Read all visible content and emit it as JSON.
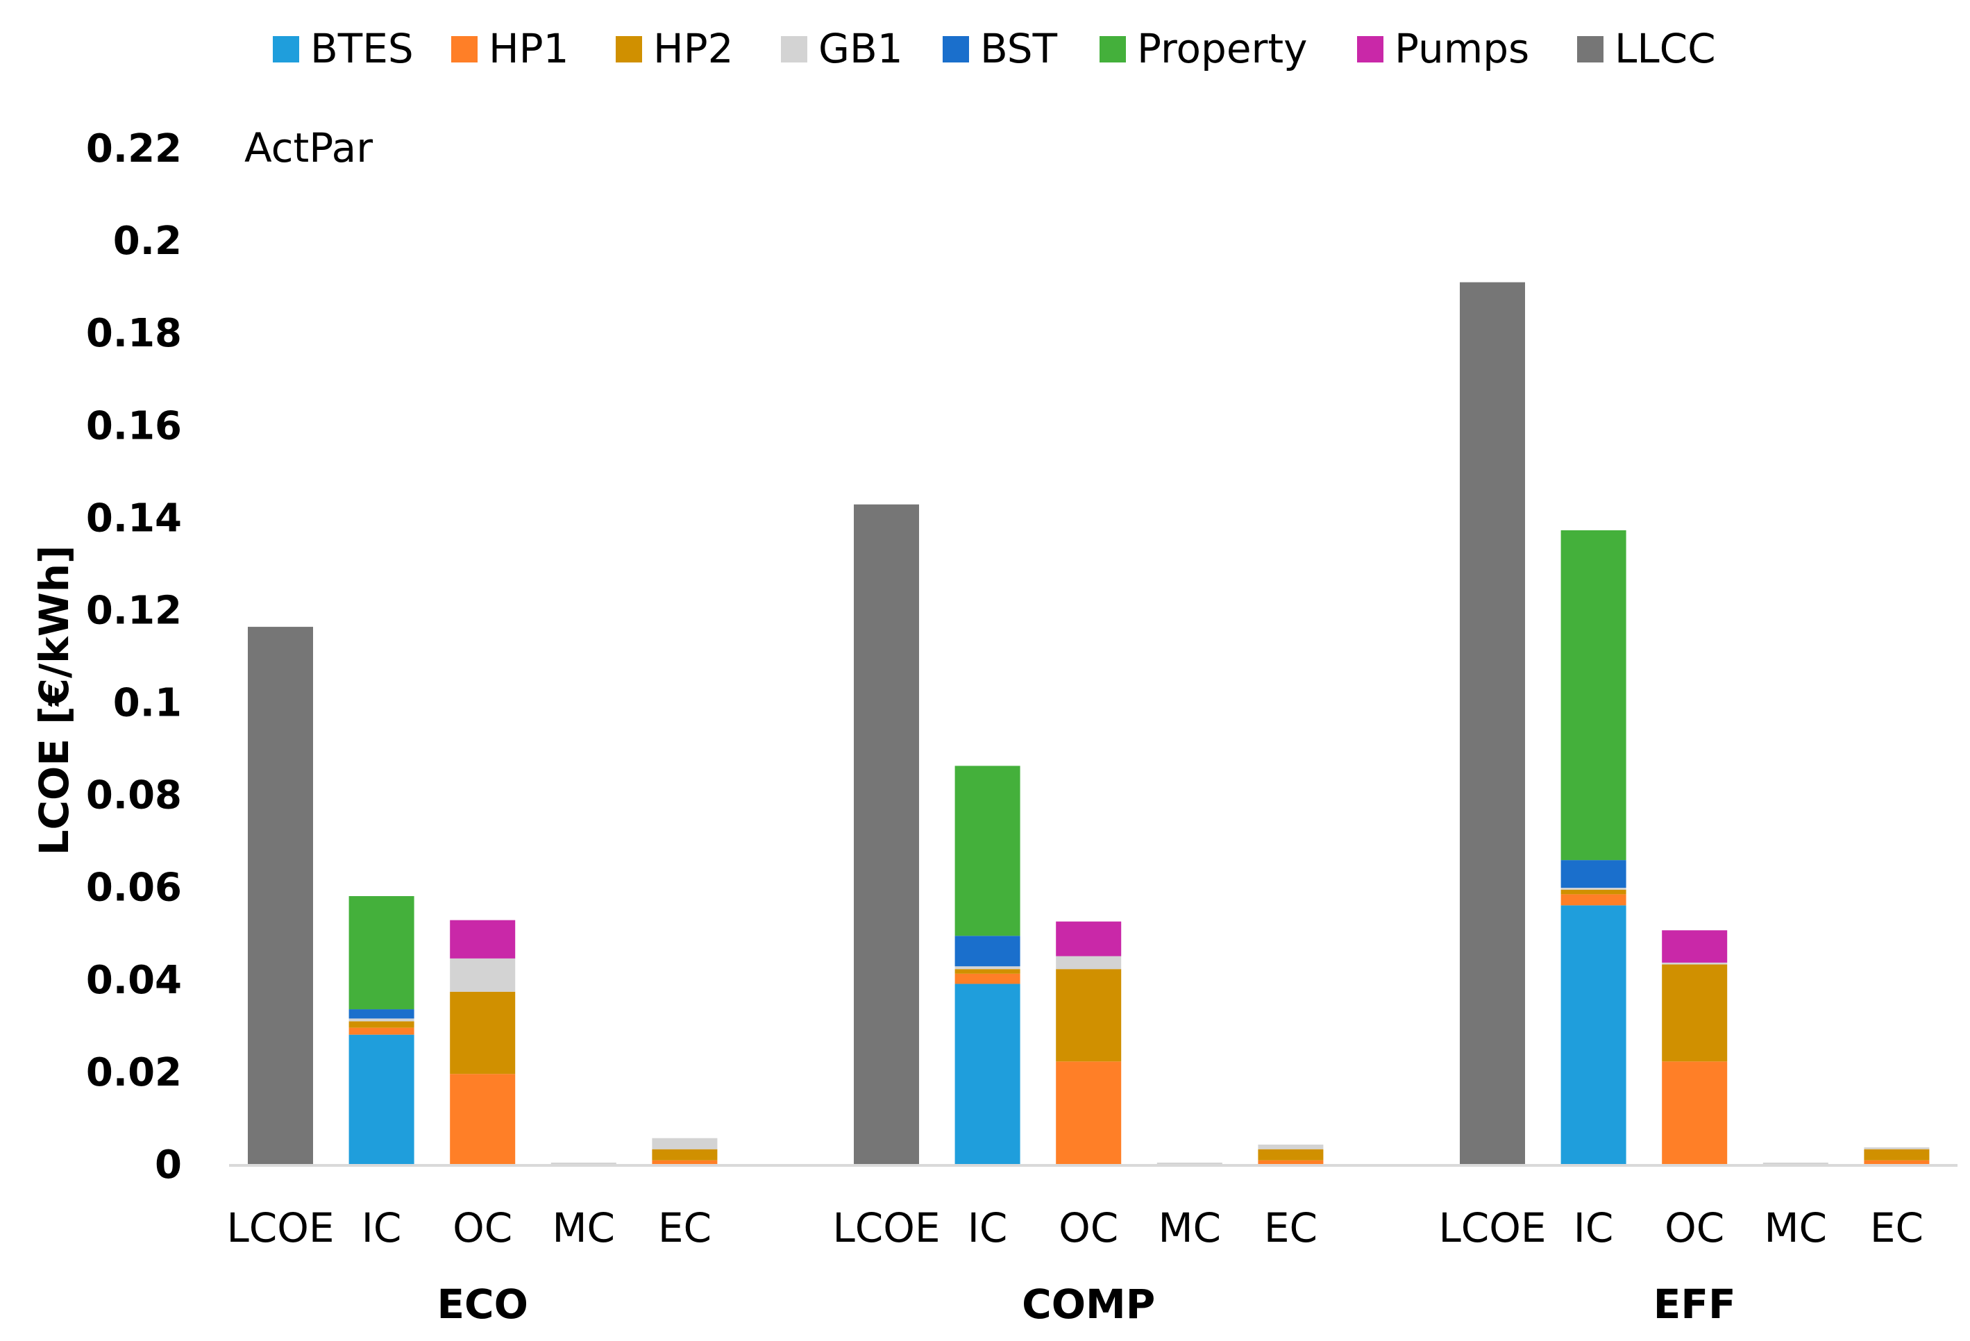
{
  "chart_data": {
    "type": "bar",
    "stacked": true,
    "title": "",
    "annotation": "ActPar",
    "ylabel": "LCOE [€/kWh]",
    "xlabel": "",
    "ylim": [
      0,
      0.22
    ],
    "yticks": [
      0,
      0.02,
      0.04,
      0.06,
      0.08,
      0.1,
      0.12,
      0.14,
      0.16,
      0.18,
      0.2,
      0.22
    ],
    "ytick_labels": [
      "0",
      "0.02",
      "0.04",
      "0.06",
      "0.08",
      "0.1",
      "0.12",
      "0.14",
      "0.16",
      "0.18",
      "0.2",
      "0.22"
    ],
    "grid": false,
    "legend_position": "top",
    "groups": [
      "ECO",
      "COMP",
      "EFF"
    ],
    "categories": [
      "LCOE",
      "IC",
      "OC",
      "MC",
      "EC"
    ],
    "series": [
      {
        "name": "BTES",
        "color": "#1f9edc",
        "values": [
          [
            0,
            0.028,
            0,
            0,
            0
          ],
          [
            0,
            0.039,
            0,
            0,
            0
          ],
          [
            0,
            0.056,
            0,
            0,
            0
          ]
        ]
      },
      {
        "name": "HP1",
        "color": "#ff7f27",
        "values": [
          [
            0,
            0.0015,
            0.0195,
            0,
            0.0008
          ],
          [
            0,
            0.0022,
            0.0222,
            0,
            0.0008
          ],
          [
            0,
            0.0024,
            0.0222,
            0,
            0.0008
          ]
        ]
      },
      {
        "name": "HP2",
        "color": "#d09000",
        "values": [
          [
            0,
            0.0014,
            0.0178,
            0,
            0.0024
          ],
          [
            0,
            0.001,
            0.02,
            0,
            0.0024
          ],
          [
            0,
            0.001,
            0.021,
            0,
            0.0024
          ]
        ]
      },
      {
        "name": "GB1",
        "color": "#d3d3d3",
        "values": [
          [
            0,
            0.0006,
            0.0072,
            0.0003,
            0.0024
          ],
          [
            0,
            0.0006,
            0.0028,
            0.0003,
            0.001
          ],
          [
            0,
            0.0004,
            0.0004,
            0.0003,
            0.0004
          ]
        ]
      },
      {
        "name": "BST",
        "color": "#1a6fcc",
        "values": [
          [
            0,
            0.002,
            0,
            0,
            0
          ],
          [
            0,
            0.0066,
            0,
            0,
            0
          ],
          [
            0,
            0.006,
            0,
            0,
            0
          ]
        ]
      },
      {
        "name": "Property",
        "color": "#44b03b",
        "values": [
          [
            0,
            0.0245,
            0,
            0,
            0
          ],
          [
            0,
            0.0368,
            0,
            0,
            0
          ],
          [
            0,
            0.0714,
            0,
            0,
            0
          ]
        ]
      },
      {
        "name": "Pumps",
        "color": "#c928a8",
        "values": [
          [
            0,
            0,
            0.0083,
            0,
            0
          ],
          [
            0,
            0,
            0.0075,
            0,
            0
          ],
          [
            0,
            0,
            0.007,
            0,
            0
          ]
        ]
      },
      {
        "name": "LLCC",
        "color": "#767676",
        "values": [
          [
            0.1163,
            0,
            0,
            0,
            0
          ],
          [
            0.1428,
            0,
            0,
            0,
            0
          ],
          [
            0.1909,
            0,
            0,
            0,
            0
          ]
        ]
      }
    ]
  }
}
